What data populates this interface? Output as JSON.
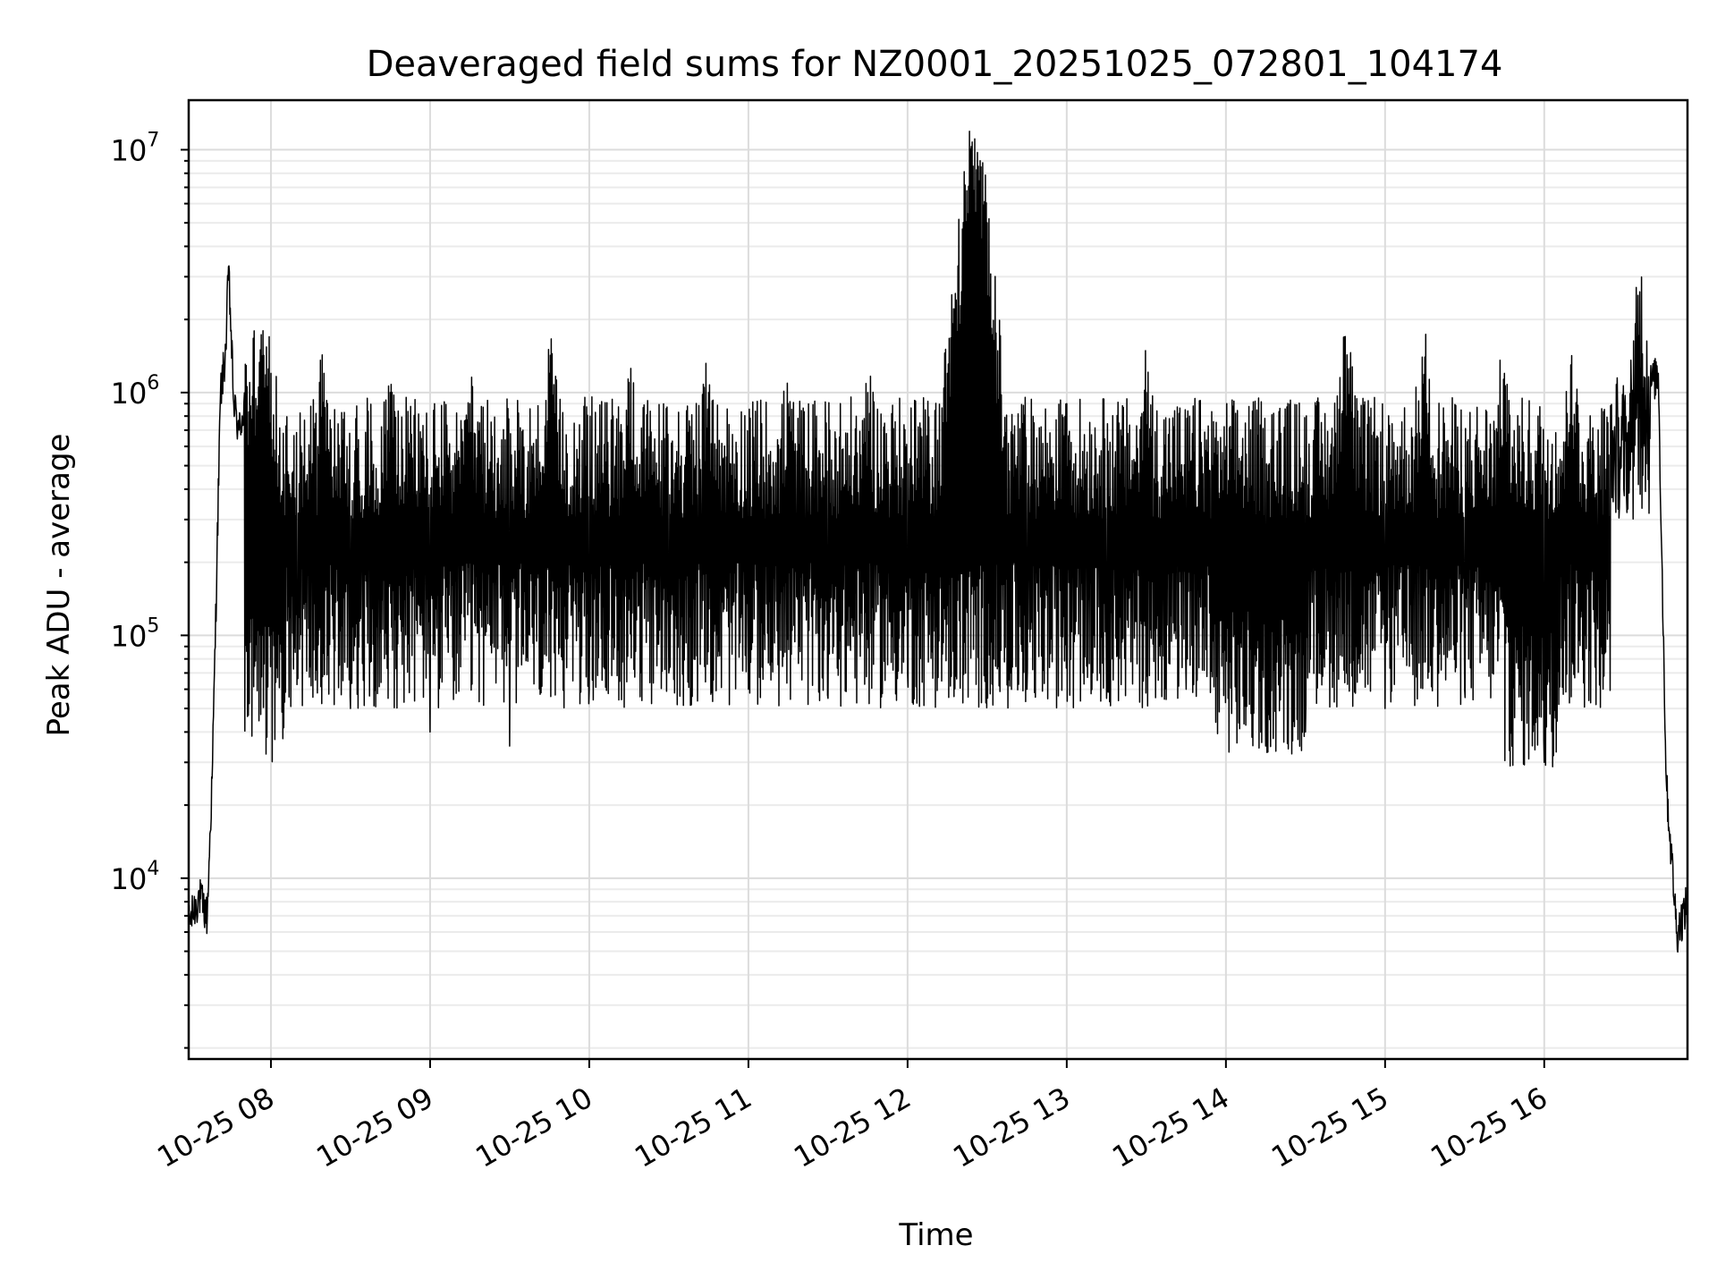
{
  "chart_data": {
    "type": "line",
    "title": "Deaveraged field sums for NZ0001_20251025_072801_104174",
    "xlabel": "Time",
    "ylabel": "Peak ADU - average",
    "yscale": "log",
    "ylim": [
      1800,
      16000000
    ],
    "xlim": [
      "2025-10-25 07:29",
      "2025-10-25 16:54"
    ],
    "grid": true,
    "x_tick_labels": [
      "10-25 08",
      "10-25 09",
      "10-25 10",
      "10-25 11",
      "10-25 12",
      "10-25 13",
      "10-25 14",
      "10-25 15",
      "10-25 16"
    ],
    "y_tick_labels": [
      {
        "base": "10",
        "exp": "4",
        "value": 10000
      },
      {
        "base": "10",
        "exp": "5",
        "value": 100000
      },
      {
        "base": "10",
        "exp": "6",
        "value": 1000000
      },
      {
        "base": "10",
        "exp": "7",
        "value": 10000000
      }
    ],
    "series": [
      {
        "color": "#000000",
        "x": [
          "2025-10-25 07:29",
          "2025-10-25 07:33",
          "2025-10-25 07:36",
          "2025-10-25 07:38",
          "2025-10-25 07:41",
          "2025-10-25 07:43",
          "2025-10-25 07:44",
          "2025-10-25 07:46",
          "2025-10-25 07:48",
          "2025-10-25 07:52",
          "2025-10-25 07:56",
          "2025-10-25 08:00",
          "2025-10-25 08:10",
          "2025-10-25 08:20",
          "2025-10-25 08:30",
          "2025-10-25 08:45",
          "2025-10-25 09:00",
          "2025-10-25 09:15",
          "2025-10-25 09:30",
          "2025-10-25 09:45",
          "2025-10-25 10:00",
          "2025-10-25 10:15",
          "2025-10-25 10:30",
          "2025-10-25 10:45",
          "2025-10-25 11:00",
          "2025-10-25 11:15",
          "2025-10-25 11:30",
          "2025-10-25 11:45",
          "2025-10-25 12:00",
          "2025-10-25 12:15",
          "2025-10-25 12:24",
          "2025-10-25 12:30",
          "2025-10-25 12:45",
          "2025-10-25 13:00",
          "2025-10-25 13:15",
          "2025-10-25 13:30",
          "2025-10-25 13:45",
          "2025-10-25 14:00",
          "2025-10-25 14:15",
          "2025-10-25 14:30",
          "2025-10-25 14:45",
          "2025-10-25 15:00",
          "2025-10-25 15:15",
          "2025-10-25 15:30",
          "2025-10-25 15:45",
          "2025-10-25 16:00",
          "2025-10-25 16:10",
          "2025-10-25 16:20",
          "2025-10-25 16:30",
          "2025-10-25 16:36",
          "2025-10-25 16:40",
          "2025-10-25 16:43",
          "2025-10-25 16:46",
          "2025-10-25 16:50",
          "2025-10-25 16:54"
        ],
        "y": [
          6500,
          8500,
          7000,
          30000,
          1000000,
          1500000,
          3300000,
          900000,
          700000,
          1100000,
          1500000,
          1200000,
          100000,
          1200000,
          50000,
          1000000,
          40000,
          900000,
          35000,
          1200000,
          60000,
          1100000,
          70000,
          1000000,
          60000,
          900000,
          55000,
          1000000,
          70000,
          1200000,
          10300000,
          5000000,
          60000,
          900000,
          55000,
          1000000,
          60000,
          600000,
          35000,
          40000,
          1700000,
          50000,
          1400000,
          60000,
          1200000,
          30000,
          1300000,
          150000,
          400000,
          2600000,
          1100000,
          1200000,
          25000,
          6000,
          8000
        ]
      }
    ]
  }
}
